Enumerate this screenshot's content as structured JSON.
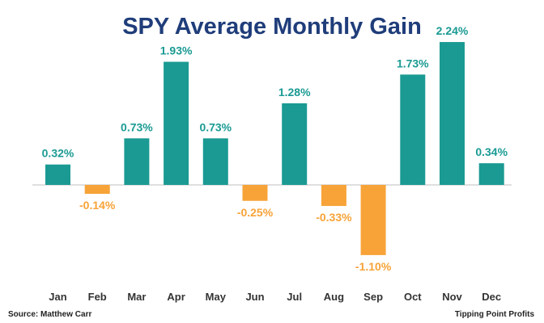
{
  "chart_data": {
    "type": "bar",
    "title": "SPY Average Monthly Gain",
    "categories": [
      "Jan",
      "Feb",
      "Mar",
      "Apr",
      "May",
      "Jun",
      "Jul",
      "Aug",
      "Sep",
      "Oct",
      "Nov",
      "Dec"
    ],
    "values": [
      0.32,
      -0.14,
      0.73,
      1.93,
      0.73,
      -0.25,
      1.28,
      -0.33,
      -1.1,
      1.73,
      2.24,
      0.34
    ],
    "value_labels": [
      "0.32%",
      "-0.14%",
      "0.73%",
      "1.93%",
      "0.73%",
      "-0.25%",
      "1.28%",
      "-0.33%",
      "-1.10%",
      "1.73%",
      "2.24%",
      "0.34%"
    ],
    "xlabel": "",
    "ylabel": "",
    "ylim": [
      -1.1,
      2.24
    ],
    "grid": false,
    "colors": {
      "positive": "#1a9a93",
      "negative": "#f7a338",
      "title": "#1f3d7a",
      "zero_line": "#bfbfbf"
    }
  },
  "source": "Source: Matthew Carr",
  "brand": "Tipping Point Profits"
}
